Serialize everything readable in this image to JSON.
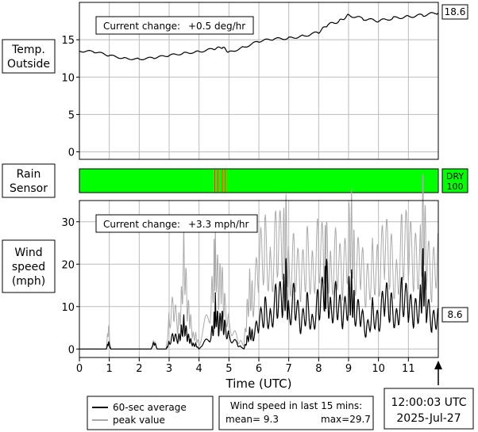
{
  "temperature_panel": {
    "label_line1": "Temp.",
    "label_line2": "Outside",
    "current_change_label": "Current change:",
    "current_change_value": "+0.5 deg/hr",
    "current_value": "18.6"
  },
  "rain_panel": {
    "label_line1": "Rain",
    "label_line2": "Sensor",
    "status_text": "DRY",
    "status_value": "100",
    "dry_color": "#00ff00",
    "wet_color": "#ffa500",
    "mark_color": "#c04000"
  },
  "wind_panel": {
    "label_line1": "Wind",
    "label_line2": "speed",
    "label_line3": "(mph)",
    "current_change_label": "Current change:",
    "current_change_value": "+3.3 mph/hr",
    "current_value": "8.6"
  },
  "x_axis": {
    "label": "Time (UTC)",
    "ticks": [
      "0",
      "1",
      "2",
      "3",
      "4",
      "5",
      "6",
      "7",
      "8",
      "9",
      "10",
      "11"
    ]
  },
  "legend": {
    "average_label": "60-sec average",
    "peak_label": "peak value",
    "average_color": "#000000",
    "peak_color": "#aaaaaa"
  },
  "stats_box": {
    "title": "Wind speed in last 15 mins:",
    "mean_text": "mean= 9.3",
    "max_text": "max=29.7"
  },
  "timestamp": {
    "time": "12:00:03 UTC",
    "date": "2025-Jul-27"
  },
  "chart_data": [
    {
      "type": "line",
      "name": "temperature",
      "xlim": [
        0,
        12
      ],
      "ylim": [
        -1,
        20
      ],
      "yticks": [
        "0",
        "5",
        "10",
        "15"
      ],
      "ytick_values": [
        0,
        5,
        10,
        15
      ],
      "grid": true,
      "series": [
        {
          "x": [
            0,
            0.5,
            1,
            1.5,
            2,
            2.5,
            3,
            3.5,
            4,
            4.5,
            4.8,
            5,
            5.5,
            6,
            6.5,
            7,
            7.5,
            8,
            8.3,
            8.7,
            9,
            9.5,
            10,
            10.5,
            11,
            11.5,
            12
          ],
          "values": [
            13.5,
            13.4,
            12.9,
            12.5,
            12.4,
            12.6,
            12.9,
            13.2,
            13.4,
            13.8,
            14.0,
            13.3,
            14.0,
            14.8,
            15.1,
            15.2,
            15.5,
            16.0,
            17.0,
            17.5,
            18.3,
            17.8,
            17.5,
            17.9,
            18.1,
            18.3,
            18.6
          ]
        }
      ]
    },
    {
      "type": "heatmap",
      "name": "rain_sensor",
      "xlim": [
        0,
        12
      ],
      "wet_intervals": [
        [
          4.5,
          4.55
        ],
        [
          4.6,
          4.65
        ],
        [
          4.75,
          4.8
        ],
        [
          4.85,
          4.9
        ]
      ],
      "dry_value": 100
    },
    {
      "type": "line",
      "name": "wind_speed",
      "xlim": [
        0,
        12
      ],
      "ylim": [
        -2,
        35
      ],
      "yticks": [
        "0",
        "10",
        "20",
        "30"
      ],
      "ytick_values": [
        0,
        10,
        20,
        30
      ],
      "grid": true,
      "series": [
        {
          "name": "60-sec average",
          "x": [
            0,
            0.9,
            0.97,
            1.05,
            2.4,
            2.5,
            2.6,
            2.9,
            3.0,
            3.15,
            3.3,
            3.4,
            3.5,
            3.6,
            3.7,
            3.8,
            3.9,
            4.0,
            4.4,
            4.5,
            4.55,
            4.65,
            4.75,
            4.85,
            5.0,
            5.3,
            5.5,
            5.6,
            5.7,
            5.8,
            6.0,
            6.2,
            6.4,
            6.6,
            6.8,
            6.9,
            7.0,
            7.2,
            7.4,
            7.6,
            7.8,
            8.0,
            8.2,
            8.25,
            8.4,
            8.6,
            8.8,
            9.0,
            9.1,
            9.2,
            9.4,
            9.6,
            9.8,
            10.0,
            10.2,
            10.4,
            10.6,
            10.8,
            11.0,
            11.2,
            11.4,
            11.5,
            11.6,
            11.8,
            12.0
          ],
          "values": [
            0,
            0,
            1.5,
            0,
            0,
            1.5,
            0,
            0,
            1.5,
            3,
            2,
            4,
            6,
            3,
            2,
            1,
            1,
            0,
            3,
            6,
            10,
            5,
            7,
            5,
            3,
            1,
            0,
            2,
            4,
            3,
            6,
            9,
            7,
            12,
            11,
            16,
            8,
            12,
            5,
            10,
            6,
            11,
            13,
            16,
            9,
            12,
            7,
            12,
            14,
            9,
            8,
            4,
            9,
            6,
            12,
            10,
            7,
            13,
            10,
            8,
            11,
            18,
            10,
            6,
            8.6
          ]
        },
        {
          "name": "peak value",
          "x": [
            0,
            0.9,
            0.97,
            1.05,
            2.4,
            2.5,
            2.6,
            2.9,
            3.0,
            3.15,
            3.3,
            3.4,
            3.5,
            3.6,
            3.7,
            3.8,
            3.9,
            4.0,
            4.4,
            4.5,
            4.55,
            4.65,
            4.75,
            4.85,
            5.0,
            5.3,
            5.5,
            5.6,
            5.7,
            5.8,
            6.0,
            6.2,
            6.4,
            6.6,
            6.8,
            6.9,
            7.0,
            7.2,
            7.4,
            7.6,
            7.8,
            8.0,
            8.2,
            8.25,
            8.4,
            8.6,
            8.8,
            9.0,
            9.1,
            9.2,
            9.4,
            9.6,
            9.8,
            10.0,
            10.2,
            10.4,
            10.6,
            10.8,
            11.0,
            11.2,
            11.4,
            11.5,
            11.6,
            11.8,
            12.0
          ],
          "values": [
            0,
            0,
            5,
            0,
            0,
            2,
            0,
            0,
            7,
            10,
            5,
            10,
            23,
            10,
            7,
            3,
            3,
            1,
            10,
            19,
            23,
            14,
            16,
            10,
            6,
            2,
            1,
            8,
            15,
            11,
            20,
            24,
            18,
            26,
            23,
            28,
            18,
            21,
            15,
            22,
            18,
            24,
            21,
            23,
            18,
            22,
            16,
            25,
            29,
            19,
            20,
            14,
            20,
            18,
            24,
            21,
            16,
            25,
            24,
            20,
            22,
            32,
            21,
            16,
            25
          ]
        }
      ]
    }
  ]
}
